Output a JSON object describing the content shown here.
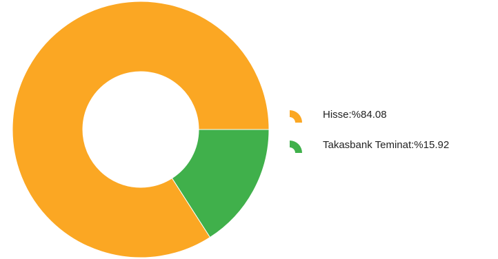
{
  "chart_data": {
    "type": "pie",
    "donut": true,
    "title": "",
    "slices": [
      {
        "label": "Hisse",
        "legend_text": "Hisse:%84.08",
        "value": 84.08,
        "color": "#FBA723"
      },
      {
        "label": "Takasbank Teminat",
        "legend_text": "Takasbank Teminat:%15.92",
        "value": 15.92,
        "color": "#40B04B"
      }
    ],
    "start_angle_deg": 90,
    "direction": "clockwise",
    "legend_placement": "right",
    "legend_icon": "arc-icon"
  }
}
